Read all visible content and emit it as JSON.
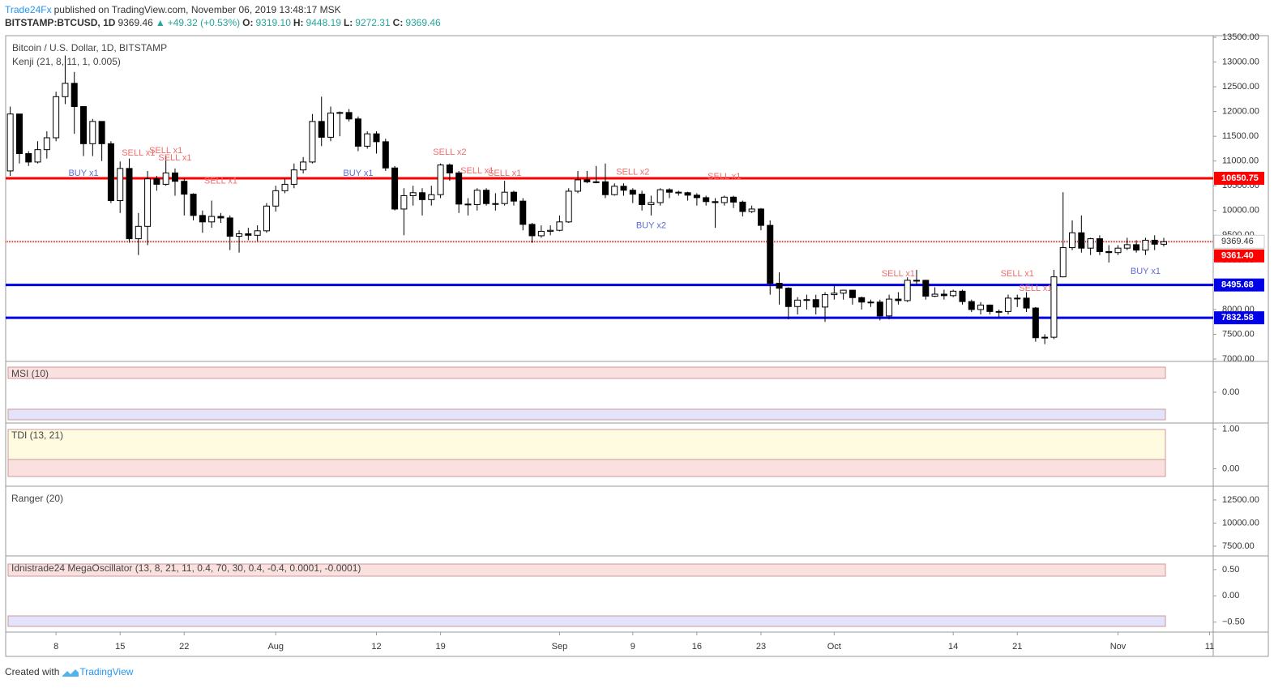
{
  "header": {
    "brand": "Trade24Fx",
    "published": "published on TradingView.com, November 06, 2019 13:48:17 MSK",
    "symbol": "BITSTAMP:BTCUSD, 1D",
    "price": "9369.46",
    "arrow": "▲",
    "change": "+49.32 (+0.53%)",
    "o_label": "O:",
    "o": "9319.10",
    "h_label": "H:",
    "h": "9448.19",
    "l_label": "L:",
    "l": "9272.31",
    "c_label": "C:",
    "c": "9369.46"
  },
  "chart_data": [
    {
      "type": "candlestick",
      "title": "Bitcoin / U.S. Dollar, 1D, BITSTAMP",
      "subtitle": "Kenji (21, 8, 11, 1, 0.005)",
      "open": [
        10800,
        11950,
        11150,
        10980,
        11230,
        11470,
        12300,
        12570,
        12100,
        11350,
        11800,
        11350,
        10200,
        10850,
        9430,
        9680,
        10640,
        10530,
        10760,
        10590,
        10330,
        9900,
        9770,
        9880,
        9850,
        9480,
        9530,
        9500,
        9590,
        10090,
        10400,
        10530,
        10820,
        10980,
        11800,
        11480,
        11970,
        11980,
        11850,
        11300,
        11550,
        11390,
        10860,
        10030,
        10300,
        10360,
        10220,
        10320,
        10920,
        10760,
        10130,
        10120,
        10410,
        10140,
        10140,
        10370,
        10190,
        9720,
        9490,
        9580,
        9600,
        9770,
        10390,
        10620,
        10580,
        10580,
        10320,
        10490,
        10410,
        10330,
        10120,
        10160,
        10420,
        10370,
        10360,
        10310,
        10260,
        10180,
        10160,
        10270,
        10170,
        9980,
        10030,
        9700,
        8530,
        8430,
        8060,
        8190,
        8200,
        8050,
        8300,
        8330,
        8390,
        8240,
        8150,
        8150,
        7870,
        8210,
        8180,
        8590,
        8590,
        8270,
        8310,
        8280,
        8370,
        8160,
        8000,
        8090,
        7960,
        7960,
        8230,
        8230,
        8030,
        7430,
        7440,
        8660,
        9250,
        9550,
        9240,
        9430,
        9170,
        9150,
        9240,
        9310,
        9200,
        9400,
        9319.1
      ],
      "high": [
        12100,
        11950,
        11200,
        11400,
        11600,
        12400,
        13130,
        12800,
        12100,
        11850,
        11800,
        11400,
        10990,
        11050,
        9950,
        10800,
        10700,
        11100,
        10850,
        10650,
        10350,
        10000,
        10200,
        9950,
        9900,
        9600,
        9650,
        9700,
        10150,
        10500,
        10650,
        10950,
        11080,
        11950,
        12300,
        12100,
        12000,
        12050,
        11900,
        11600,
        11600,
        11450,
        10900,
        10450,
        10500,
        10450,
        10500,
        10950,
        10950,
        10800,
        10250,
        10450,
        10450,
        10350,
        10600,
        10400,
        10250,
        9750,
        9700,
        9700,
        9900,
        10450,
        10800,
        10800,
        10900,
        10950,
        10550,
        10550,
        10450,
        10400,
        10300,
        10450,
        10450,
        10400,
        10380,
        10350,
        10300,
        10250,
        10300,
        10300,
        10200,
        10100,
        10050,
        9800,
        8750,
        8450,
        8250,
        8300,
        8300,
        8350,
        8500,
        8400,
        8400,
        8260,
        8200,
        8200,
        8300,
        8350,
        8650,
        8800,
        8600,
        8450,
        8400,
        8400,
        8400,
        8200,
        8150,
        8100,
        8000,
        8300,
        8300,
        8350,
        8050,
        7500,
        8800,
        10370,
        9800,
        9900,
        9450,
        9500,
        9300,
        9300,
        9450,
        9400,
        9450,
        9500,
        9448.19
      ],
      "low": [
        10700,
        10950,
        10900,
        10950,
        11050,
        11400,
        12150,
        11550,
        11100,
        11100,
        11000,
        10150,
        9950,
        9350,
        9100,
        9300,
        10400,
        10500,
        10300,
        9900,
        9800,
        9550,
        9650,
        9750,
        9200,
        9150,
        9400,
        9380,
        9550,
        9980,
        10350,
        10450,
        10750,
        10950,
        11300,
        11400,
        11500,
        11800,
        11200,
        11250,
        11150,
        10800,
        10000,
        9500,
        10100,
        9900,
        10100,
        10250,
        10600,
        9950,
        9900,
        10000,
        10100,
        10000,
        10100,
        10100,
        9600,
        9350,
        9450,
        9500,
        9580,
        9750,
        10350,
        10550,
        10550,
        10250,
        10300,
        10300,
        10150,
        10000,
        9900,
        10100,
        10250,
        10300,
        10200,
        10100,
        10100,
        9650,
        10100,
        10050,
        9880,
        9950,
        9600,
        8300,
        8100,
        7800,
        7900,
        8000,
        7900,
        7750,
        8200,
        8200,
        8100,
        8000,
        8050,
        7780,
        7800,
        8100,
        8150,
        8500,
        8200,
        8250,
        8200,
        8250,
        8100,
        7950,
        7900,
        7900,
        7850,
        7900,
        8050,
        7950,
        7350,
        7300,
        7400,
        8650,
        9200,
        9150,
        9100,
        9100,
        8950,
        9100,
        9200,
        9150,
        9100,
        9200,
        9272.31
      ],
      "close": [
        11950,
        11150,
        10980,
        11230,
        11470,
        12300,
        12570,
        12100,
        11350,
        11800,
        11350,
        10200,
        10850,
        9430,
        9680,
        10640,
        10530,
        10760,
        10590,
        10330,
        9900,
        9770,
        9880,
        9850,
        9480,
        9530,
        9500,
        9590,
        10090,
        10400,
        10530,
        10820,
        10980,
        11800,
        11480,
        11970,
        11980,
        11850,
        11300,
        11550,
        11390,
        10860,
        10030,
        10300,
        10360,
        10220,
        10320,
        10920,
        10760,
        10130,
        10120,
        10410,
        10140,
        10140,
        10370,
        10190,
        9720,
        9490,
        9580,
        9600,
        9770,
        10390,
        10620,
        10580,
        10580,
        10320,
        10490,
        10410,
        10330,
        10120,
        10160,
        10420,
        10370,
        10360,
        10310,
        10260,
        10180,
        10160,
        10270,
        10170,
        9980,
        10030,
        9700,
        8530,
        8430,
        8060,
        8190,
        8200,
        8050,
        8300,
        8330,
        8390,
        8240,
        8150,
        8150,
        7870,
        8210,
        8180,
        8590,
        8590,
        8270,
        8310,
        8280,
        8370,
        8160,
        8000,
        8090,
        7960,
        7960,
        8230,
        8230,
        8030,
        7430,
        7440,
        8660,
        9250,
        9550,
        9240,
        9430,
        9170,
        9150,
        9240,
        9310,
        9200,
        9400,
        9320,
        9369.46
      ],
      "up_color": "#ffffff",
      "down_color": "#000000",
      "xlim": [
        -0.5,
        131.4
      ],
      "xticks": [
        {
          "value": 5,
          "label": "8"
        },
        {
          "value": 12,
          "label": "15"
        },
        {
          "value": 19,
          "label": "22"
        },
        {
          "value": 29,
          "label": "Aug"
        },
        {
          "value": 40,
          "label": "12"
        },
        {
          "value": 47,
          "label": "19"
        },
        {
          "value": 60,
          "label": "Sep"
        },
        {
          "value": 68,
          "label": "9"
        },
        {
          "value": 75,
          "label": "16"
        },
        {
          "value": 82,
          "label": "23"
        },
        {
          "value": 90,
          "label": "Oct"
        },
        {
          "value": 103,
          "label": "14"
        },
        {
          "value": 110,
          "label": "21"
        },
        {
          "value": 121,
          "label": "Nov"
        },
        {
          "value": 131,
          "label": "11"
        }
      ],
      "ylim": [
        6951,
        13533
      ],
      "yticks": [
        {
          "value": 7000,
          "label": "7000.00"
        },
        {
          "value": 7500,
          "label": "7500.00"
        },
        {
          "value": 8000,
          "label": "8000.00"
        },
        {
          "value": 8500,
          "label": "8500.00"
        },
        {
          "value": 9000,
          "label": "9000.00"
        },
        {
          "value": 9500,
          "label": "9500.00"
        },
        {
          "value": 10000,
          "label": "10000.00"
        },
        {
          "value": 10500,
          "label": "10500.00"
        },
        {
          "value": 11000,
          "label": "11000.00"
        },
        {
          "value": 11500,
          "label": "11500.00"
        },
        {
          "value": 12000,
          "label": "12000.00"
        },
        {
          "value": 12500,
          "label": "12500.00"
        },
        {
          "value": 13000,
          "label": "13000.00"
        },
        {
          "value": 13500,
          "label": "13500.00"
        }
      ],
      "levels": [
        {
          "value": 10650.75,
          "color": "#ff0000"
        },
        {
          "value": 8495.68,
          "color": "#0000e6"
        },
        {
          "value": 7832.58,
          "color": "#0000e6"
        }
      ],
      "last_price": 9369.46,
      "signal_price": {
        "value": 9361.4,
        "label": "9361.40",
        "color": "#ff0000"
      },
      "annotations": [
        {
          "text": "BUY x1",
          "x": 8,
          "y": 10750,
          "color": "#5b6bd5"
        },
        {
          "text": "SELL x1",
          "x": 14,
          "y": 11160,
          "color": "#f26b6b"
        },
        {
          "text": "SELL x1",
          "x": 17,
          "y": 11210,
          "color": "#f26b6b"
        },
        {
          "text": "SELL x1",
          "x": 18,
          "y": 11060,
          "color": "#f26b6b"
        },
        {
          "text": "SELL x1",
          "x": 23,
          "y": 10590,
          "color": "#f26b6b"
        },
        {
          "text": "BUY x1",
          "x": 38,
          "y": 10750,
          "color": "#5b6bd5"
        },
        {
          "text": "SELL x2",
          "x": 48,
          "y": 11170,
          "color": "#f26b6b"
        },
        {
          "text": "SELL x1",
          "x": 51,
          "y": 10800,
          "color": "#f26b6b"
        },
        {
          "text": "SELL x1",
          "x": 54,
          "y": 10750,
          "color": "#f26b6b"
        },
        {
          "text": "SELL x2",
          "x": 68,
          "y": 10770,
          "color": "#f26b6b"
        },
        {
          "text": "BUY x2",
          "x": 70,
          "y": 9690,
          "color": "#5b6bd5"
        },
        {
          "text": "SELL x1",
          "x": 78,
          "y": 10680,
          "color": "#f26b6b"
        },
        {
          "text": "SELL x1",
          "x": 97,
          "y": 8720,
          "color": "#f26b6b"
        },
        {
          "text": "SELL x1",
          "x": 110,
          "y": 8720,
          "color": "#f26b6b"
        },
        {
          "text": "SELL x1",
          "x": 112,
          "y": 8420,
          "color": "#f26b6b"
        },
        {
          "text": "BUY x1",
          "x": 124,
          "y": 8770,
          "color": "#5b6bd5"
        }
      ]
    },
    {
      "type": "indicator",
      "title": "MSI (10)",
      "ylim": [
        -1,
        1
      ],
      "yticks": [
        {
          "value": 0,
          "label": "0.00"
        }
      ]
    },
    {
      "type": "indicator",
      "title": "TDI (13, 21)",
      "ylim": [
        -0.44,
        1.15
      ],
      "yticks": [
        {
          "value": 1,
          "label": "1.00"
        },
        {
          "value": 0,
          "label": "0.00"
        }
      ]
    },
    {
      "type": "indicator",
      "title": "Ranger (20)",
      "ylim": [
        6450,
        13990
      ],
      "yticks": [
        {
          "value": 12500,
          "label": "12500.00"
        },
        {
          "value": 10000,
          "label": "10000.00"
        },
        {
          "value": 7500,
          "label": "7500.00"
        }
      ]
    },
    {
      "type": "indicator",
      "title": "Idnistrade24 MegaOscillator (13, 8, 21, 11, 0.4, 70, 30, 0.4, -0.4, 0.0001, -0.0001)",
      "ylim": [
        -0.69,
        0.76
      ],
      "yticks": [
        {
          "value": 0.5,
          "label": "0.50"
        },
        {
          "value": 0,
          "label": "0.00"
        },
        {
          "value": -0.5,
          "label": "−0.50"
        }
      ]
    }
  ],
  "footer": {
    "created": "Created with",
    "brand": "TradingView"
  }
}
